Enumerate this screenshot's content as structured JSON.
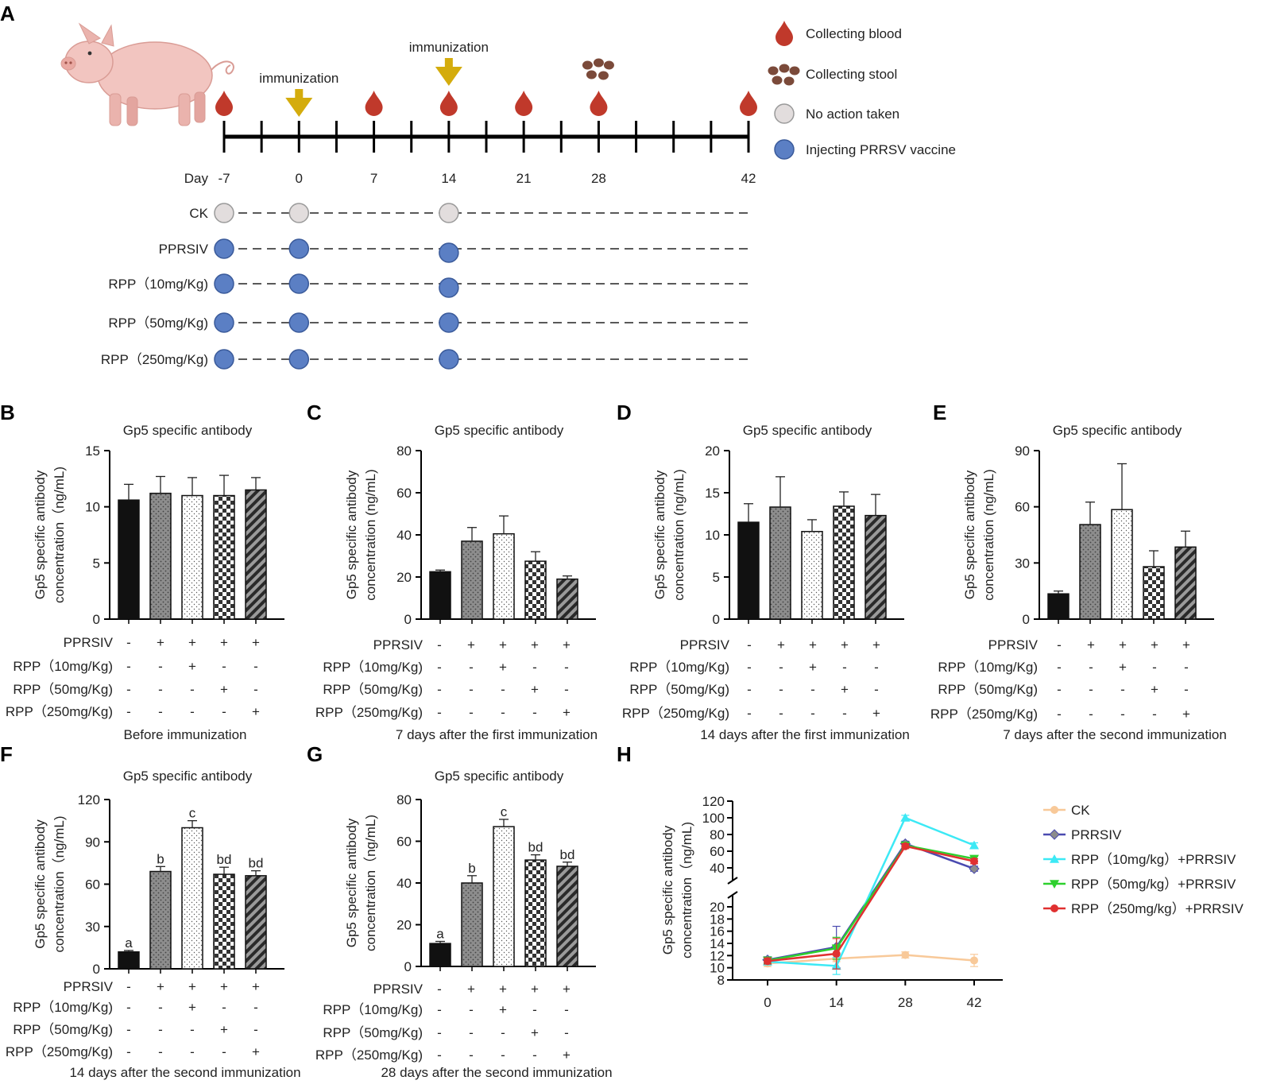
{
  "panel_letters": [
    "A",
    "B",
    "C",
    "D",
    "E",
    "F",
    "G",
    "H"
  ],
  "schedule": {
    "immunization_label": "immunization",
    "day_word": "Day",
    "day_labels": [
      "-7",
      "0",
      "7",
      "14",
      "21",
      "28",
      "42"
    ],
    "legend": [
      {
        "icon": "blood-drop-icon",
        "text": "Collecting blood"
      },
      {
        "icon": "stool-icon",
        "text": "Collecting stool"
      },
      {
        "icon": "gray-circle-icon",
        "text": "No action taken"
      },
      {
        "icon": "blue-circle-icon",
        "text": "Injecting PRRSV vaccine"
      }
    ],
    "groups": [
      {
        "label": "CK",
        "action": "none"
      },
      {
        "label": "PPRSIV",
        "action": "vaccine"
      },
      {
        "label": "RPP（10mg/Kg)",
        "action": "vaccine"
      },
      {
        "label": "RPP（50mg/Kg)",
        "action": "vaccine"
      },
      {
        "label": "RPP（250mg/Kg)",
        "action": "vaccine"
      }
    ],
    "blood_days": [
      -7,
      7,
      14,
      21,
      28,
      42
    ],
    "stool_days": [
      28
    ],
    "immunization_days": [
      0,
      14
    ],
    "injection_days": [
      -7,
      0,
      14
    ]
  },
  "colors": {
    "blood": "#c0392b",
    "immunization_arrow": "#d4ac0d",
    "stool": "#7b4a3a",
    "no_action": "#e2dddd",
    "vaccine": "#5b7fc4",
    "ck": "#f8c999",
    "prrsiv": "#4a4ab0",
    "rpp10": "#3ce9f5",
    "rpp50": "#2ed02e",
    "rpp250": "#e03030",
    "rpp250_prrsiv_marker": "#8c8c8c"
  },
  "treatment_rows": {
    "labels": [
      "PPRSIV",
      "RPP（10mg/Kg)",
      "RPP（50mg/Kg)",
      "RPP（250mg/Kg)"
    ],
    "signs": [
      [
        "-",
        "+",
        "+",
        "+",
        "+"
      ],
      [
        "-",
        "-",
        "+",
        "-",
        "-"
      ],
      [
        "-",
        "-",
        "-",
        "+",
        "-"
      ],
      [
        "-",
        "-",
        "-",
        "-",
        "+"
      ]
    ]
  },
  "chart_data": [
    {
      "panel": "B",
      "type": "bar",
      "title": "Gp5 specific antibody",
      "ylabel_line1": "Gp5 specific antibody",
      "ylabel_line2": "concentration（ng/mL)",
      "caption": "Before immunization",
      "ylim": [
        0,
        15
      ],
      "yticks": [
        0,
        5,
        10,
        15
      ],
      "values": [
        10.6,
        11.2,
        11.0,
        11.0,
        11.5
      ],
      "errors": [
        1.4,
        1.5,
        1.6,
        1.8,
        1.1
      ],
      "letters": [
        "",
        "",
        "",
        "",
        ""
      ]
    },
    {
      "panel": "C",
      "type": "bar",
      "title": "Gp5 specific antibody",
      "ylabel_line1": "Gp5 specific antibody",
      "ylabel_line2": "concentration (ng/mL)",
      "caption": "7 days after the first immunization",
      "ylim": [
        0,
        80
      ],
      "yticks": [
        0,
        20,
        40,
        60,
        80
      ],
      "values": [
        22.5,
        37,
        40.5,
        27.5,
        19
      ],
      "errors": [
        0.8,
        6.5,
        8.5,
        4.5,
        1.5
      ],
      "letters": [
        "",
        "",
        "",
        "",
        ""
      ]
    },
    {
      "panel": "D",
      "type": "bar",
      "title": "Gp5 specific antibody",
      "ylabel_line1": "Gp5 specific antibody",
      "ylabel_line2": "concentration (ng/mL)",
      "caption": "14 days after the first immunization",
      "ylim": [
        0,
        20
      ],
      "yticks": [
        0,
        5,
        10,
        15,
        20
      ],
      "values": [
        11.5,
        13.3,
        10.4,
        13.4,
        12.3
      ],
      "errors": [
        2.2,
        3.6,
        1.4,
        1.7,
        2.5
      ],
      "letters": [
        "",
        "",
        "",
        "",
        ""
      ]
    },
    {
      "panel": "E",
      "type": "bar",
      "title": "Gp5 specific antibody",
      "ylabel_line1": "Gp5 specific antibody",
      "ylabel_line2": "concentration (ng/mL)",
      "caption": "7 days after the second immunization",
      "ylim": [
        0,
        90
      ],
      "yticks": [
        0,
        30,
        60,
        90
      ],
      "values": [
        13.5,
        50.5,
        58.5,
        28,
        38.5
      ],
      "errors": [
        1.5,
        12,
        24.5,
        8.5,
        8.5
      ],
      "letters": [
        "",
        "",
        "",
        "",
        ""
      ]
    },
    {
      "panel": "F",
      "type": "bar",
      "title": "Gp5 specific antibody",
      "ylabel_line1": "Gp5 specific antibody",
      "ylabel_line2": "concentration（ng/mL)",
      "caption": "14 days after the second immunization",
      "ylim": [
        0,
        120
      ],
      "yticks": [
        0,
        30,
        60,
        90,
        120
      ],
      "values": [
        12,
        69,
        100,
        67,
        66
      ],
      "errors": [
        1,
        3.5,
        5,
        5,
        3.5
      ],
      "letters": [
        "a",
        "b",
        "c",
        "bd",
        "bd"
      ]
    },
    {
      "panel": "G",
      "type": "bar",
      "title": "Gp5 specific antibody",
      "ylabel_line1": "Gp5 specific antibody",
      "ylabel_line2": "concentration（ng/mL)",
      "caption": "28 days after the second immunization",
      "ylim": [
        0,
        80
      ],
      "yticks": [
        0,
        20,
        40,
        60,
        80
      ],
      "values": [
        11,
        40,
        67,
        51,
        48
      ],
      "errors": [
        1,
        3.5,
        3.5,
        2.5,
        2
      ],
      "letters": [
        "a",
        "b",
        "c",
        "bd",
        "bd"
      ]
    },
    {
      "panel": "H",
      "type": "line",
      "ylabel_line1": "Gp5 specific antibody",
      "ylabel_line2": "concentration（ng/mL)",
      "x": [
        0,
        14,
        28,
        42
      ],
      "x_tick_labels": [
        "0",
        "14",
        "28",
        "42"
      ],
      "lower_range": [
        8,
        20
      ],
      "upper_range": [
        40,
        120
      ],
      "y_tick_labels_lower": [
        "8",
        "10",
        "12",
        "14",
        "16",
        "18",
        "20"
      ],
      "y_tick_labels_upper": [
        "40",
        "60",
        "80",
        "100",
        "120"
      ],
      "series": [
        {
          "name": "CK",
          "color_key": "ck",
          "marker": "circle",
          "values": [
            10.7,
            11.5,
            12.1,
            11.2
          ],
          "errors": [
            0.5,
            0.5,
            0.5,
            1.0
          ]
        },
        {
          "name": "PRRSIV",
          "color_key": "prrsiv",
          "marker": "diamond",
          "values": [
            11.3,
            13.4,
            69,
            39
          ],
          "errors": [
            0.5,
            3.4,
            3,
            3
          ]
        },
        {
          "name": "RPP（10mg/kg）+PRRSIV",
          "color_key": "rpp10",
          "marker": "triangle",
          "values": [
            11.0,
            10.3,
            100,
            67
          ],
          "errors": [
            0.5,
            1.4,
            3,
            3
          ]
        },
        {
          "name": "RPP（50mg/kg）+PRRSIV",
          "color_key": "rpp50",
          "marker": "triangle-down",
          "values": [
            11.2,
            13.2,
            67,
            51
          ],
          "errors": [
            0.5,
            1.8,
            3,
            3
          ]
        },
        {
          "name": "RPP（250mg/kg）+PRRSIV",
          "color_key": "rpp250",
          "marker": "circle",
          "values": [
            11.1,
            12.3,
            66,
            48
          ],
          "errors": [
            0.5,
            2.5,
            3,
            3
          ]
        }
      ]
    }
  ]
}
